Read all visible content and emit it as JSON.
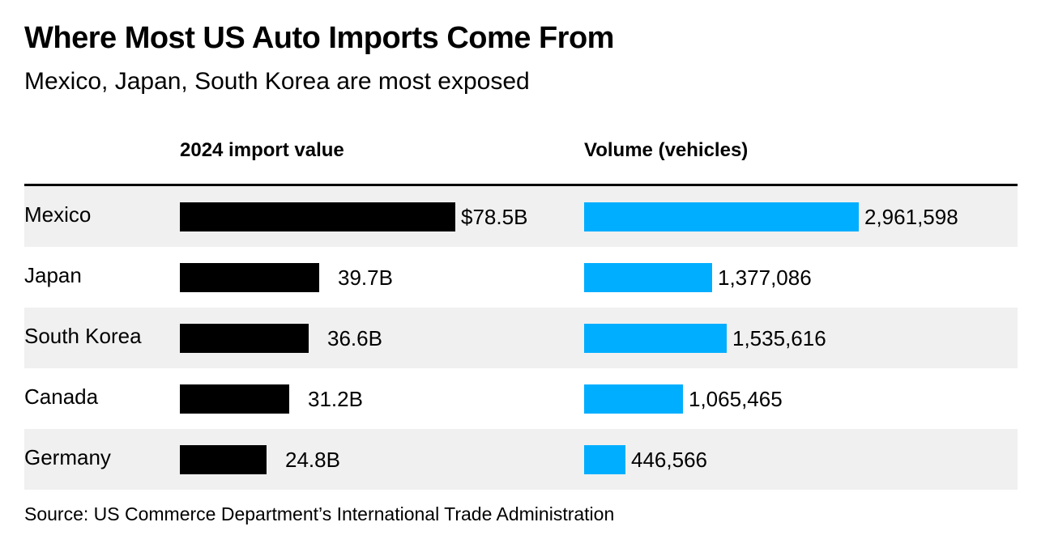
{
  "title": "Where Most US Auto Imports Come From",
  "subtitle": "Mexico, Japan, South Korea are most exposed",
  "source": "Source: US Commerce Department’s International Trade Administration",
  "colors": {
    "value_bar": "#000000",
    "volume_bar": "#00aeff",
    "row_shade": "#f0f0f0"
  },
  "chart_data": {
    "type": "bar",
    "orientation": "horizontal",
    "categories": [
      "Mexico",
      "Japan",
      "South Korea",
      "Canada",
      "Germany"
    ],
    "series": [
      {
        "name": "2024 import value",
        "values": [
          78.5,
          39.7,
          36.6,
          31.2,
          24.8
        ],
        "labels": [
          "$78.5B",
          "39.7B",
          "36.6B",
          "31.2B",
          "24.8B"
        ]
      },
      {
        "name": "Volume (vehicles)",
        "values": [
          2961598,
          1377086,
          1535616,
          1065465,
          446566
        ],
        "labels": [
          "2,961,598",
          "1,377,086",
          "1,535,616",
          "1,065,465",
          "446,566"
        ]
      }
    ],
    "legend": "none",
    "grid": false
  }
}
